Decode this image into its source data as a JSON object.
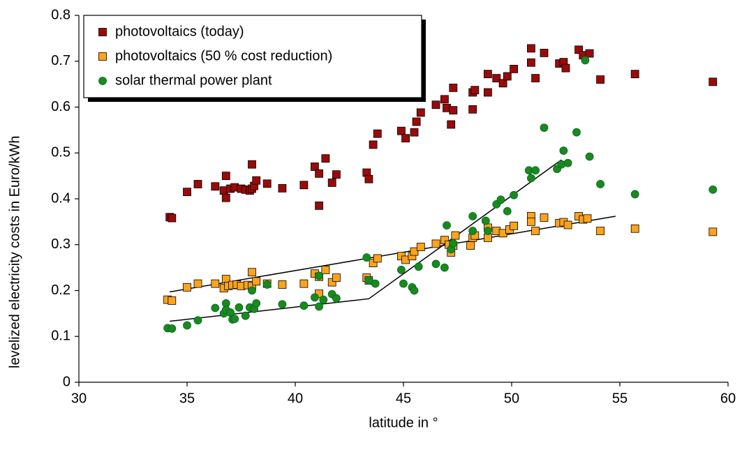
{
  "chart_data": {
    "type": "scatter",
    "x_label": "latitude in °",
    "y_label": "levelized electricity costs in Euro/kWh",
    "xlim": [
      30,
      60
    ],
    "xticks": [
      30,
      35,
      40,
      45,
      50,
      55,
      60
    ],
    "ylim": [
      0,
      0.8
    ],
    "yticks": [
      0,
      0.1,
      0.2,
      0.3,
      0.4,
      0.5,
      0.6,
      0.7,
      0.8
    ],
    "legend": "top-left",
    "series": [
      {
        "name": "photovoltaics (today)",
        "color": "#9b0a0a",
        "marker": "square",
        "x": [
          34.2,
          34.3,
          35.0,
          35.5,
          36.3,
          36.7,
          36.8,
          36.8,
          37.0,
          37.2,
          37.5,
          37.7,
          37.9,
          38.0,
          38.0,
          38.1,
          38.2,
          38.7,
          39.4,
          40.4,
          40.9,
          41.1,
          41.1,
          41.4,
          41.7,
          41.9,
          43.3,
          43.4,
          43.6,
          43.8,
          44.9,
          45.1,
          45.5,
          45.6,
          45.8,
          46.5,
          46.9,
          47.0,
          47.2,
          47.3,
          47.3,
          48.2,
          48.2,
          48.3,
          48.9,
          48.9,
          49.3,
          49.6,
          49.8,
          50.1,
          50.9,
          50.9,
          51.1,
          51.5,
          52.2,
          52.4,
          52.5,
          53.1,
          53.3,
          53.6,
          54.1,
          55.7,
          59.3
        ],
        "values": [
          0.36,
          0.358,
          0.415,
          0.432,
          0.427,
          0.418,
          0.45,
          0.402,
          0.422,
          0.425,
          0.422,
          0.42,
          0.418,
          0.422,
          0.475,
          0.428,
          0.44,
          0.433,
          0.423,
          0.43,
          0.47,
          0.385,
          0.455,
          0.488,
          0.435,
          0.453,
          0.457,
          0.443,
          0.518,
          0.542,
          0.548,
          0.532,
          0.545,
          0.568,
          0.588,
          0.605,
          0.617,
          0.598,
          0.562,
          0.593,
          0.642,
          0.595,
          0.632,
          0.637,
          0.632,
          0.672,
          0.663,
          0.652,
          0.667,
          0.683,
          0.728,
          0.697,
          0.663,
          0.718,
          0.695,
          0.698,
          0.685,
          0.725,
          0.713,
          0.717,
          0.66,
          0.672,
          0.655
        ]
      },
      {
        "name": "photovoltaics (50 % cost reduction)",
        "color": "#ffa31a",
        "marker": "square",
        "x": [
          34.1,
          34.3,
          35.0,
          35.5,
          36.3,
          36.7,
          36.8,
          36.9,
          37.1,
          37.3,
          37.5,
          37.8,
          38.0,
          38.0,
          38.2,
          38.7,
          39.4,
          40.4,
          40.9,
          41.1,
          41.1,
          41.4,
          41.7,
          41.9,
          43.3,
          43.4,
          43.6,
          43.8,
          44.9,
          45.1,
          45.4,
          45.5,
          45.8,
          46.5,
          46.9,
          47.1,
          47.2,
          47.3,
          47.4,
          48.1,
          48.2,
          48.3,
          48.9,
          48.9,
          49.3,
          49.6,
          49.9,
          50.1,
          50.9,
          50.9,
          51.1,
          51.5,
          52.2,
          52.4,
          52.6,
          53.1,
          53.3,
          53.5,
          54.1,
          55.7,
          59.3
        ],
        "values": [
          0.18,
          0.178,
          0.207,
          0.215,
          0.215,
          0.205,
          0.225,
          0.21,
          0.212,
          0.213,
          0.21,
          0.212,
          0.24,
          0.21,
          0.22,
          0.215,
          0.213,
          0.215,
          0.237,
          0.193,
          0.23,
          0.245,
          0.218,
          0.228,
          0.228,
          0.222,
          0.26,
          0.27,
          0.275,
          0.267,
          0.275,
          0.285,
          0.295,
          0.302,
          0.31,
          0.3,
          0.283,
          0.298,
          0.32,
          0.298,
          0.315,
          0.32,
          0.315,
          0.337,
          0.33,
          0.325,
          0.333,
          0.341,
          0.362,
          0.35,
          0.33,
          0.359,
          0.347,
          0.349,
          0.343,
          0.362,
          0.355,
          0.357,
          0.33,
          0.335,
          0.328
        ]
      },
      {
        "name": "solar thermal power plant",
        "color": "#1a8a1a",
        "marker": "circle",
        "x": [
          34.1,
          34.3,
          35.0,
          35.5,
          36.3,
          36.7,
          36.8,
          36.8,
          37.0,
          37.1,
          37.2,
          37.4,
          37.7,
          37.9,
          38.0,
          38.1,
          38.2,
          38.7,
          39.4,
          40.4,
          40.9,
          41.1,
          41.1,
          41.3,
          41.7,
          41.9,
          43.3,
          43.4,
          43.7,
          44.9,
          45.0,
          45.4,
          45.5,
          45.7,
          46.5,
          46.9,
          47.0,
          47.2,
          47.3,
          48.2,
          48.2,
          48.8,
          48.9,
          49.3,
          49.5,
          49.8,
          50.1,
          50.8,
          50.9,
          51.1,
          51.5,
          52.1,
          52.3,
          52.4,
          52.6,
          53.0,
          53.4,
          53.6,
          54.1,
          55.7,
          59.3
        ],
        "values": [
          0.118,
          0.117,
          0.124,
          0.135,
          0.162,
          0.15,
          0.172,
          0.158,
          0.152,
          0.137,
          0.138,
          0.163,
          0.145,
          0.163,
          0.2,
          0.16,
          0.172,
          0.213,
          0.17,
          0.167,
          0.185,
          0.165,
          0.232,
          0.18,
          0.192,
          0.183,
          0.272,
          0.222,
          0.215,
          0.245,
          0.215,
          0.207,
          0.2,
          0.252,
          0.258,
          0.25,
          0.342,
          0.29,
          0.303,
          0.33,
          0.362,
          0.352,
          0.33,
          0.388,
          0.398,
          0.373,
          0.408,
          0.462,
          0.445,
          0.462,
          0.555,
          0.465,
          0.475,
          0.505,
          0.478,
          0.545,
          0.702,
          0.492,
          0.432,
          0.41,
          0.42
        ]
      }
    ],
    "trend_lines": [
      {
        "color": "#000000",
        "x": [
          34.2,
          54.8
        ],
        "values": [
          0.197,
          0.362
        ]
      },
      {
        "color": "#000000",
        "x": [
          34.2,
          43.4,
          52.3
        ],
        "values": [
          0.133,
          0.182,
          0.485
        ]
      }
    ]
  }
}
